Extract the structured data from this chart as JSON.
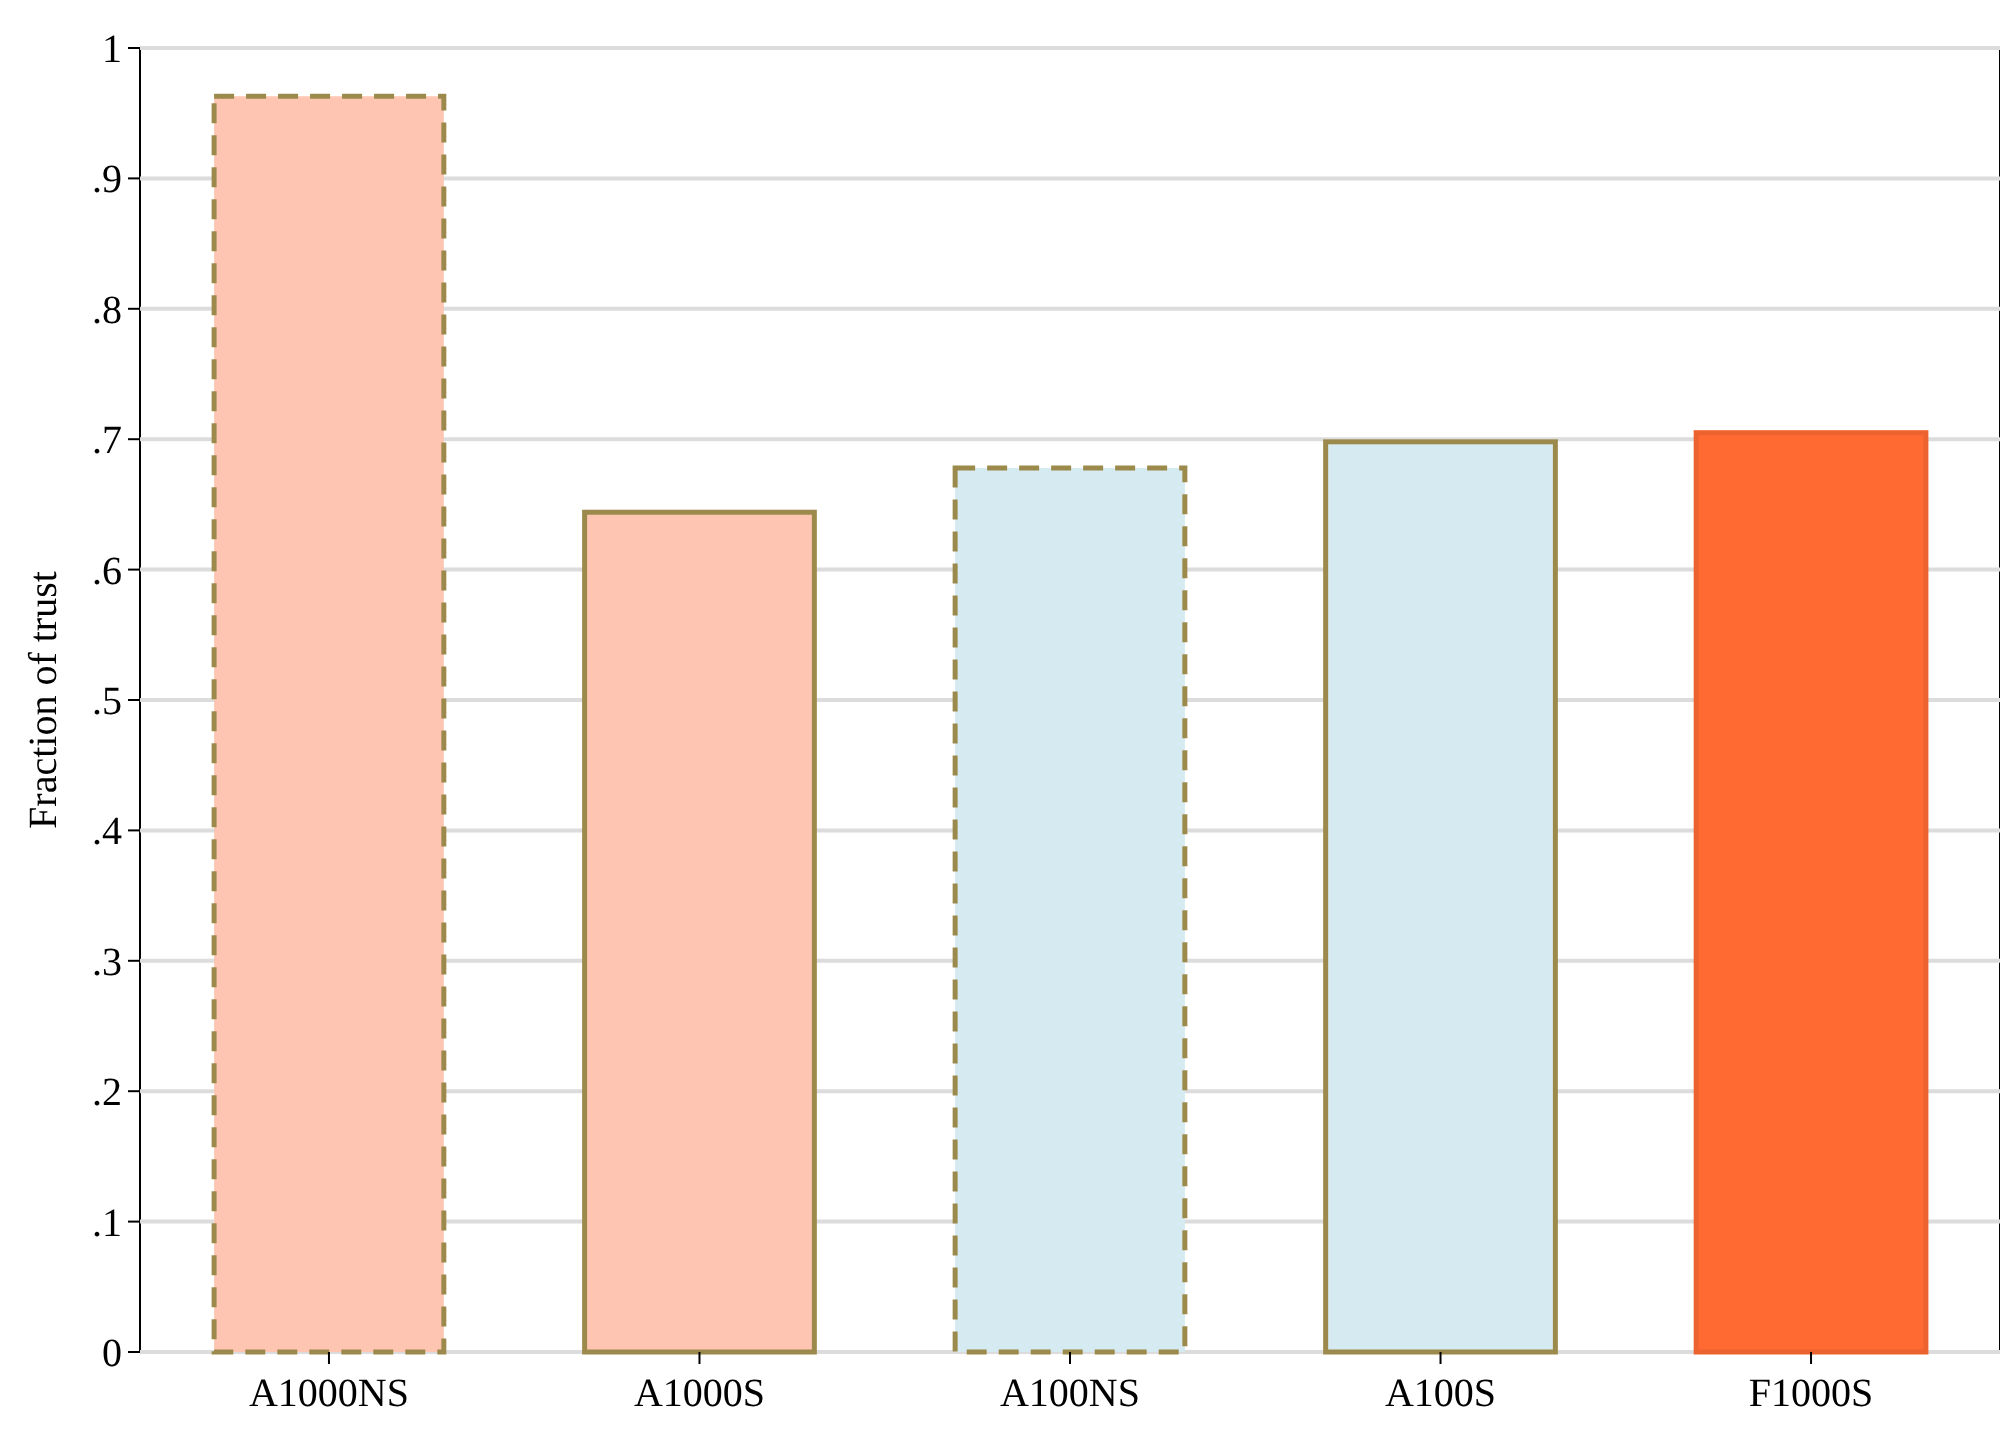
{
  "chart_data": {
    "type": "bar",
    "ylabel": "Fraction of trust",
    "categories": [
      "A1000NS",
      "A1000S",
      "A100NS",
      "A100S",
      "F1000S"
    ],
    "series": [
      {
        "color": "#fec6b2",
        "line_style": "dashed",
        "values": [
          0.963,
          null,
          null,
          null,
          null
        ]
      },
      {
        "color": "#fec6b2",
        "line_style": "solid",
        "values": [
          null,
          0.644,
          null,
          null,
          null
        ]
      },
      {
        "color": "#d5ebf1",
        "line_style": "dashed",
        "values": [
          null,
          null,
          0.678,
          null,
          null
        ]
      },
      {
        "color": "#d5ebf1",
        "line_style": "solid",
        "values": [
          null,
          null,
          null,
          0.698,
          null
        ]
      },
      {
        "color": "#ff6a33",
        "line_style": "solid",
        "values": [
          null,
          null,
          null,
          null,
          0.705
        ]
      }
    ],
    "ylim": [
      0,
      1.0
    ],
    "yticks": [
      {
        "value": 0,
        "label": "0"
      },
      {
        "value": 0.1,
        "label": ".1"
      },
      {
        "value": 0.2,
        "label": ".2"
      },
      {
        "value": 0.3,
        "label": ".3"
      },
      {
        "value": 0.4,
        "label": ".4"
      },
      {
        "value": 0.5,
        "label": ".5"
      },
      {
        "value": 0.6,
        "label": ".6"
      },
      {
        "value": 0.7,
        "label": ".7"
      },
      {
        "value": 0.8,
        "label": ".8"
      },
      {
        "value": 0.9,
        "label": ".9"
      },
      {
        "value": 1,
        "label": "1"
      }
    ],
    "grid": "y"
  }
}
